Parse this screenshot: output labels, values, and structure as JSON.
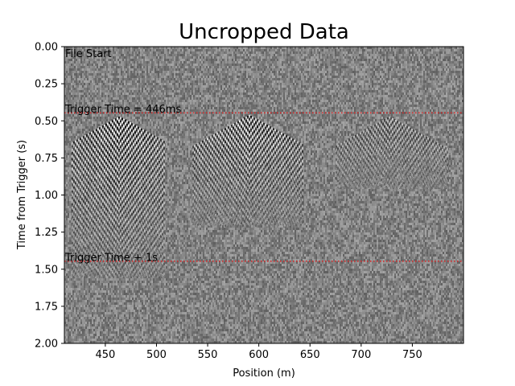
{
  "chart_data": {
    "type": "heatmap",
    "title": "Uncropped Data",
    "xlabel": "Position (m)",
    "ylabel": "Time from Trigger (s)",
    "xlim": [
      410,
      800
    ],
    "ylim": [
      2.0,
      0.0
    ],
    "y_inverted": true,
    "colormap": "gray",
    "grid": false,
    "x_ticks": [
      {
        "value": 450,
        "label": "450"
      },
      {
        "value": 500,
        "label": "500"
      },
      {
        "value": 550,
        "label": "550"
      },
      {
        "value": 600,
        "label": "600"
      },
      {
        "value": 650,
        "label": "650"
      },
      {
        "value": 700,
        "label": "700"
      },
      {
        "value": 750,
        "label": "750"
      }
    ],
    "y_ticks": [
      {
        "value": 0.0,
        "label": "0.00"
      },
      {
        "value": 0.25,
        "label": "0.25"
      },
      {
        "value": 0.5,
        "label": "0.50"
      },
      {
        "value": 0.75,
        "label": "0.75"
      },
      {
        "value": 1.0,
        "label": "1.00"
      },
      {
        "value": 1.25,
        "label": "1.25"
      },
      {
        "value": 1.5,
        "label": "1.50"
      },
      {
        "value": 1.75,
        "label": "1.75"
      },
      {
        "value": 2.0,
        "label": "2.00"
      }
    ],
    "hlines": [
      {
        "y": 0.446,
        "color": "#d62728",
        "style": "dotted"
      },
      {
        "y": 1.446,
        "color": "#d62728",
        "style": "dotted"
      }
    ],
    "annotations": [
      {
        "text": "File Start",
        "x": 410,
        "y": 0.0
      },
      {
        "text": "Trigger Time = 446ms",
        "x": 410,
        "y": 0.446
      },
      {
        "text": "Trigger Time + 1s",
        "x": 410,
        "y": 1.446
      }
    ],
    "events": [
      {
        "x_center": 463,
        "x_min": 417,
        "x_max": 507,
        "t_start": 0.47,
        "t_end": 1.55,
        "strength": 1.0
      },
      {
        "x_center": 590,
        "x_min": 535,
        "x_max": 643,
        "t_start": 0.46,
        "t_end": 1.2,
        "strength": 0.85
      },
      {
        "x_center": 727,
        "x_min": 675,
        "x_max": 785,
        "t_start": 0.47,
        "t_end": 0.95,
        "strength": 0.5
      }
    ]
  }
}
